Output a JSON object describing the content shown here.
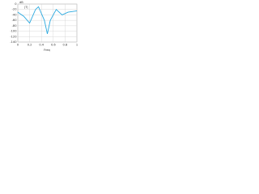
{
  "chart_data": {
    "type": "line",
    "y_label": "dB",
    "x_label": "Freq",
    "annotation": "|T|",
    "x": [
      0,
      0.1,
      0.2,
      0.3,
      0.35,
      0.45,
      0.5,
      0.55,
      0.65,
      0.75,
      0.85,
      1
    ],
    "series": [
      {
        "name": "|T|",
        "color": "#29a9e0",
        "values": [
          -30,
          -45,
          -70,
          -20,
          -10,
          -60,
          -110,
          -60,
          -20,
          -40,
          -30,
          -25
        ]
      }
    ],
    "xlim": [
      0,
      1
    ],
    "xticks": [
      0,
      0.2,
      0.4,
      0.6,
      0.8,
      1
    ],
    "ylim": [
      -140,
      0
    ],
    "yticks": [
      0,
      -20,
      -40,
      -60,
      -80,
      -100,
      -120,
      -140
    ],
    "grid": true
  }
}
